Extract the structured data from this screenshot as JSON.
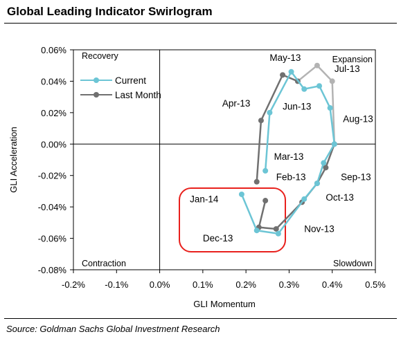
{
  "title": "Global Leading Indicator Swirlogram",
  "source": "Source: Goldman Sachs Global Investment Research",
  "colors": {
    "current": "#6cc5d5",
    "last_month": "#707070",
    "highlight": "#e8201c",
    "expansion_tail": "#b3b3b3"
  },
  "chart_data": {
    "type": "scatter",
    "title": "Global Leading Indicator Swirlogram",
    "xlabel": "GLI Momentum",
    "ylabel": "GLI Acceleration",
    "xlim": [
      -0.2,
      0.5
    ],
    "ylim": [
      -0.08,
      0.06
    ],
    "x_ticks": [
      "-0.2%",
      "-0.1%",
      "0.0%",
      "0.1%",
      "0.2%",
      "0.3%",
      "0.4%",
      "0.5%"
    ],
    "y_ticks": [
      "-0.08%",
      "-0.06%",
      "-0.04%",
      "-0.02%",
      "0.00%",
      "0.02%",
      "0.04%",
      "0.06%"
    ],
    "quadrants": [
      "Recovery",
      "Expansion",
      "Contraction",
      "Slowdown"
    ],
    "legend": {
      "position": "top-left",
      "entries": [
        "Current",
        "Last Month"
      ]
    },
    "grid": false,
    "series": [
      {
        "name": "Current",
        "points": [
          {
            "x": 0.245,
            "y": -0.017
          },
          {
            "x": 0.255,
            "y": 0.02
          },
          {
            "x": 0.305,
            "y": 0.046
          },
          {
            "x": 0.335,
            "y": 0.035
          },
          {
            "x": 0.37,
            "y": 0.037
          },
          {
            "x": 0.395,
            "y": 0.023
          },
          {
            "x": 0.405,
            "y": 0.0
          },
          {
            "x": 0.38,
            "y": -0.012
          },
          {
            "x": 0.365,
            "y": -0.025
          },
          {
            "x": 0.335,
            "y": -0.035
          },
          {
            "x": 0.275,
            "y": -0.057
          },
          {
            "x": 0.225,
            "y": -0.055
          },
          {
            "x": 0.19,
            "y": -0.032
          }
        ]
      },
      {
        "name": "Last Month",
        "points": [
          {
            "x": 0.225,
            "y": -0.024
          },
          {
            "x": 0.235,
            "y": 0.015
          },
          {
            "x": 0.285,
            "y": 0.044
          },
          {
            "x": 0.32,
            "y": 0.04
          },
          {
            "x": 0.365,
            "y": 0.05
          },
          {
            "x": 0.4,
            "y": 0.04
          },
          {
            "x": 0.405,
            "y": 0.0
          },
          {
            "x": 0.385,
            "y": -0.015
          },
          {
            "x": 0.365,
            "y": -0.025
          },
          {
            "x": 0.33,
            "y": -0.037
          },
          {
            "x": 0.27,
            "y": -0.054
          },
          {
            "x": 0.23,
            "y": -0.053
          },
          {
            "x": 0.245,
            "y": -0.036
          }
        ]
      }
    ],
    "annotations": [
      {
        "text": "May-13",
        "x": 0.255,
        "y": 0.053
      },
      {
        "text": "Jul-13",
        "x": 0.405,
        "y": 0.046
      },
      {
        "text": "Apr-13",
        "x": 0.145,
        "y": 0.024
      },
      {
        "text": "Jun-13",
        "x": 0.285,
        "y": 0.022
      },
      {
        "text": "Aug-13",
        "x": 0.425,
        "y": 0.014
      },
      {
        "text": "Mar-13",
        "x": 0.265,
        "y": -0.01
      },
      {
        "text": "Feb-13",
        "x": 0.27,
        "y": -0.023
      },
      {
        "text": "Sep-13",
        "x": 0.42,
        "y": -0.023
      },
      {
        "text": "Jan-14",
        "x": 0.07,
        "y": -0.037
      },
      {
        "text": "Oct-13",
        "x": 0.385,
        "y": -0.036
      },
      {
        "text": "Nov-13",
        "x": 0.335,
        "y": -0.056
      },
      {
        "text": "Dec-13",
        "x": 0.1,
        "y": -0.062
      }
    ]
  }
}
